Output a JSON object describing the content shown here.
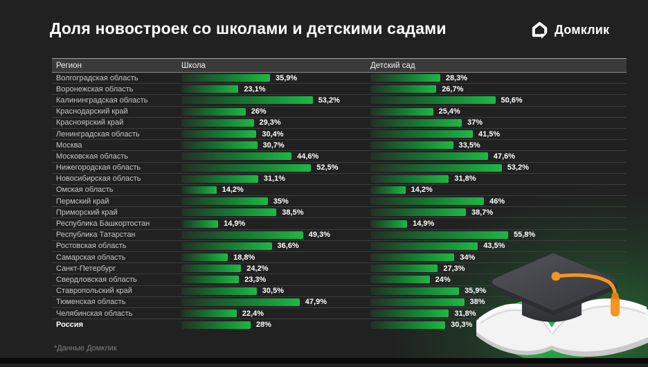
{
  "title": "Доля новостроек со школами и детскими садами",
  "logo": {
    "brand": "Домклик"
  },
  "footnote": "*Данные Домклик",
  "table_headers": {
    "region": "Регион"
  },
  "colors": {
    "background": "#212121",
    "header_bg": "#3a3a3a",
    "accent_green": "#1eb845",
    "bar_gradient_start": "#243026",
    "tassel_orange": "#f5951f"
  },
  "chart_data": {
    "type": "bar",
    "orientation": "horizontal",
    "title": "Доля новостроек со школами и детскими садами",
    "xlabel": "",
    "ylabel": "",
    "xlim": [
      0,
      60
    ],
    "grid": false,
    "legend_position": "column-headers",
    "value_suffix": "%",
    "bold_category": "Россия",
    "categories": [
      "Волгоградская область",
      "Воронежская область",
      "Калининградская область",
      "Краснодарский край",
      "Красноярский край",
      "Ленинградская область",
      "Москва",
      "Московская область",
      "Нижегородская область",
      "Новосибирская область",
      "Омская область",
      "Пермский край",
      "Приморский край",
      "Республика Башкортостан",
      "Республика Татарстан",
      "Ростовская область",
      "Самарская область",
      "Санкт-Петербург",
      "Свердловская область",
      "Ставропольский край",
      "Тюменская область",
      "Челябинская область",
      "Россия"
    ],
    "series": [
      {
        "name": "Школа",
        "values": [
          35.9,
          23.1,
          53.2,
          26,
          29.3,
          30.4,
          30.7,
          44.6,
          52.5,
          31.1,
          14.2,
          35,
          38.5,
          14.9,
          49.3,
          36.6,
          18.8,
          24.2,
          23.3,
          30.5,
          47.9,
          22.4,
          28
        ],
        "labels": [
          "35,9%",
          "23,1%",
          "53,2%",
          "26%",
          "29,3%",
          "30,4%",
          "30,7%",
          "44,6%",
          "52,5%",
          "31,1%",
          "14,2%",
          "35%",
          "38,5%",
          "14,9%",
          "49,3%",
          "36,6%",
          "18,8%",
          "24,2%",
          "23,3%",
          "30,5%",
          "47,9%",
          "22,4%",
          "28%"
        ]
      },
      {
        "name": "Детский сад",
        "values": [
          28.3,
          26.7,
          50.6,
          25.4,
          37,
          41.5,
          33.5,
          47.6,
          53.2,
          31.8,
          14.2,
          46,
          38.7,
          14.9,
          55.8,
          43.5,
          34,
          27.3,
          24,
          35.9,
          38,
          31.8,
          30.3
        ],
        "labels": [
          "28,3%",
          "26,7%",
          "50,6%",
          "25,4%",
          "37%",
          "41,5%",
          "33,5%",
          "47,6%",
          "53,2%",
          "31,8%",
          "14,2%",
          "46%",
          "38,7%",
          "14,9%",
          "55,8%",
          "43,5%",
          "34%",
          "27,3%",
          "24%",
          "35,9%",
          "38%",
          "31,8%",
          "30,3%"
        ]
      }
    ]
  }
}
